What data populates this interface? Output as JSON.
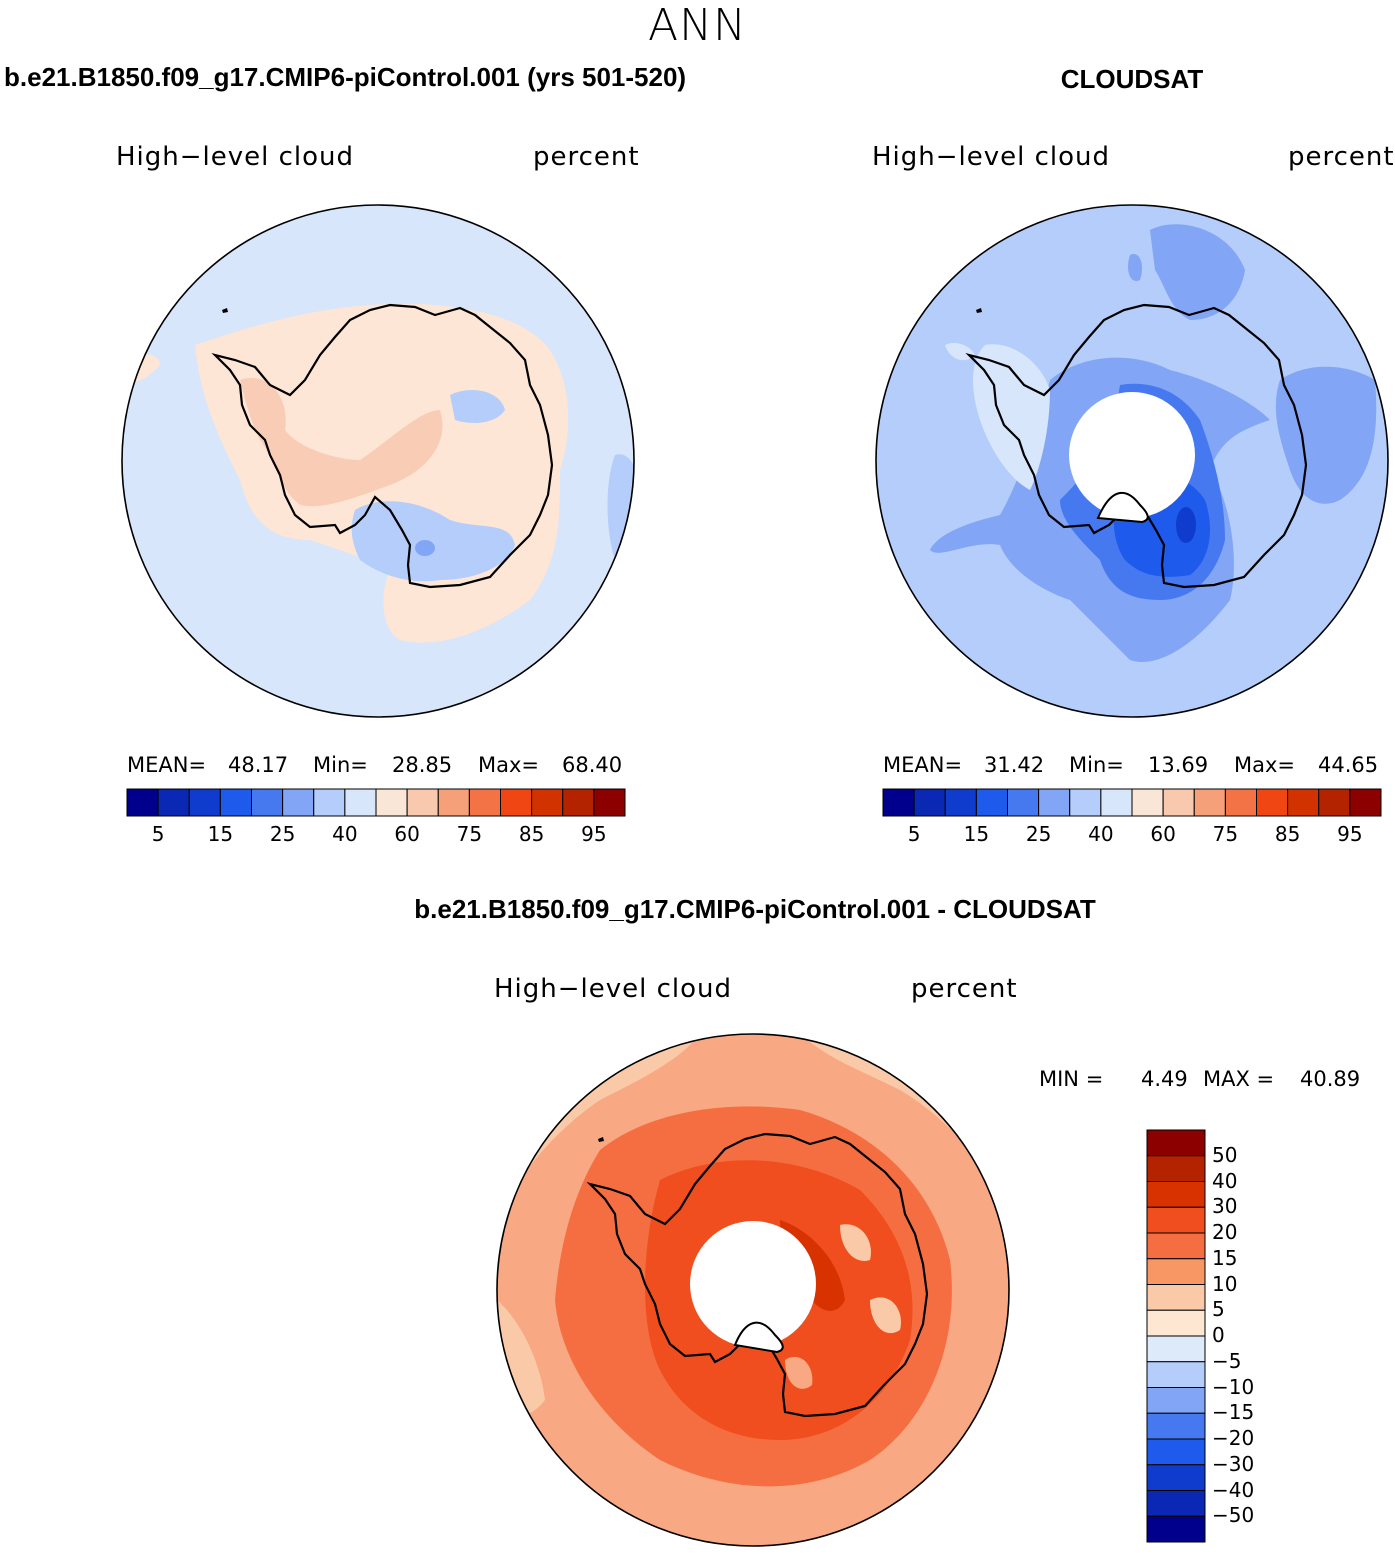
{
  "title": "ANN",
  "panels": [
    {
      "id": "model",
      "title": "b.e21.B1850.f09_g17.CMIP6-piControl.001 (yrs 501-520)",
      "left_label": "High−level cloud",
      "right_label": "percent",
      "stats": {
        "mean_label": "MEAN=",
        "mean": "48.17",
        "min_label": "Min=",
        "min": "28.85",
        "max_label": "Max=",
        "max": "68.40"
      }
    },
    {
      "id": "obs",
      "title": "CLOUDSAT",
      "left_label": "High−level cloud",
      "right_label": "percent",
      "stats": {
        "mean_label": "MEAN=",
        "mean": "31.42",
        "min_label": "Min=",
        "min": "13.69",
        "max_label": "Max=",
        "max": "44.65"
      }
    },
    {
      "id": "diff",
      "title": "b.e21.B1850.f09_g17.CMIP6-piControl.001 - CLOUDSAT",
      "left_label": "High−level cloud",
      "right_label": "percent",
      "stats": {
        "min_label": "MIN =",
        "min": "4.49",
        "max_label": "MAX =",
        "max": "40.89"
      }
    }
  ],
  "colorbar_top": {
    "colors": [
      "#00008c",
      "#0a28b4",
      "#0f3ccd",
      "#1e5aeb",
      "#4678f0",
      "#82a5f5",
      "#b4cdfa",
      "#d7e6fa",
      "#fae6d7",
      "#f8c8af",
      "#f5a078",
      "#f37346",
      "#f04614",
      "#d23200",
      "#b42300",
      "#8c0000"
    ],
    "tick_labels": [
      "5",
      "15",
      "25",
      "40",
      "60",
      "75",
      "85",
      "95"
    ]
  },
  "colorbar_diff": {
    "colors": [
      "#8c0000",
      "#b42300",
      "#d73200",
      "#f04e1e",
      "#f56e41",
      "#f89664",
      "#facaa8",
      "#fde6d2",
      "#dceafa",
      "#b4cdfa",
      "#82a5f5",
      "#4678f0",
      "#1e5aeb",
      "#0f3ccd",
      "#0a28b4",
      "#00008c"
    ],
    "tick_labels": [
      "50",
      "40",
      "30",
      "20",
      "15",
      "10",
      "5",
      "0",
      "−5",
      "−10",
      "−15",
      "−20",
      "−30",
      "−40",
      "−50"
    ]
  },
  "map_colors": {
    "model_bg": "#d7e6fa",
    "model_warm": "#fde6d5",
    "model_warm2": "#f9cdb5",
    "model_cool": "#b4cdfa",
    "model_cool2": "#82a5f5",
    "obs_bg": "#b4cdfa",
    "obs_mid": "#82a5f5",
    "obs_dark": "#4678f0",
    "obs_darker": "#1e5aeb",
    "obs_darkest": "#0f3ccd",
    "obs_light": "#d7e6fa",
    "diff_bg": "#f8a883",
    "diff_light": "#facaa8",
    "diff_mid": "#f56e41",
    "diff_dark": "#f04e1e",
    "diff_darker": "#d73200",
    "coast": "#000000"
  }
}
